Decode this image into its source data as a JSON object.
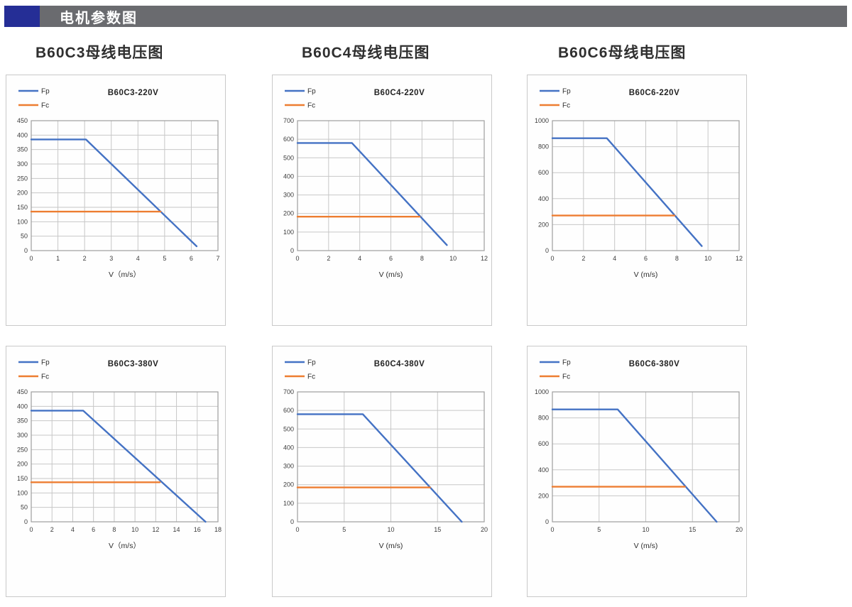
{
  "page": {
    "header": {
      "title": "电机参数图"
    },
    "column_titles": [
      "B60C3母线电压图",
      "B60C4母线电压图",
      "B60C6母线电压图"
    ]
  },
  "colors": {
    "fp": "#4472C4",
    "fc": "#ED7D31",
    "grid": "#c7c7c7",
    "axis_line": "#9e9e9e",
    "header_accent": "#252e96",
    "header_strip": "#6a6b6f"
  },
  "chart_data": [
    {
      "type": "line",
      "title": "B60C3-220V",
      "xlabel": "V（m/s）",
      "xlim": [
        0,
        7
      ],
      "ylim": [
        0,
        450
      ],
      "xticks": [
        0,
        1,
        2,
        3,
        4,
        5,
        6,
        7
      ],
      "yticks": [
        0,
        50,
        100,
        150,
        200,
        250,
        300,
        350,
        400,
        450
      ],
      "legend_position": "top-left",
      "grid": true,
      "series": [
        {
          "name": "Fp",
          "color_key": "fp",
          "points": [
            [
              0,
              385
            ],
            [
              2.05,
              385
            ],
            [
              6.2,
              15
            ]
          ]
        },
        {
          "name": "Fc",
          "color_key": "fc",
          "points": [
            [
              0,
              135
            ],
            [
              4.85,
              135
            ]
          ]
        }
      ]
    },
    {
      "type": "line",
      "title": "B60C4-220V",
      "xlabel": "V (m/s)",
      "xlim": [
        0,
        12
      ],
      "ylim": [
        0,
        700
      ],
      "xticks": [
        0,
        2,
        4,
        6,
        8,
        10,
        12
      ],
      "yticks": [
        0,
        100,
        200,
        300,
        400,
        500,
        600,
        700
      ],
      "legend_position": "top-left",
      "grid": true,
      "series": [
        {
          "name": "Fp",
          "color_key": "fp",
          "points": [
            [
              0,
              580
            ],
            [
              3.5,
              580
            ],
            [
              9.6,
              30
            ]
          ]
        },
        {
          "name": "Fc",
          "color_key": "fc",
          "points": [
            [
              0,
              183
            ],
            [
              7.85,
              183
            ]
          ]
        }
      ]
    },
    {
      "type": "line",
      "title": "B60C6-220V",
      "xlabel": "V (m/s)",
      "xlim": [
        0,
        12
      ],
      "ylim": [
        0,
        1000
      ],
      "xticks": [
        0,
        2,
        4,
        6,
        8,
        10,
        12
      ],
      "yticks": [
        0,
        200,
        400,
        600,
        800,
        1000
      ],
      "legend_position": "top-left",
      "grid": true,
      "series": [
        {
          "name": "Fp",
          "color_key": "fp",
          "points": [
            [
              0,
              865
            ],
            [
              3.5,
              865
            ],
            [
              9.6,
              35
            ]
          ]
        },
        {
          "name": "Fc",
          "color_key": "fc",
          "points": [
            [
              0,
              270
            ],
            [
              7.85,
              270
            ]
          ]
        }
      ]
    },
    {
      "type": "line",
      "title": "B60C3-380V",
      "xlabel": "V（m/s）",
      "xlim": [
        0,
        18
      ],
      "ylim": [
        0,
        450
      ],
      "xticks": [
        0,
        2,
        4,
        6,
        8,
        10,
        12,
        14,
        16,
        18
      ],
      "yticks": [
        0,
        50,
        100,
        150,
        200,
        250,
        300,
        350,
        400,
        450
      ],
      "legend_position": "top-left",
      "grid": true,
      "series": [
        {
          "name": "Fp",
          "color_key": "fp",
          "points": [
            [
              0,
              385
            ],
            [
              5,
              385
            ],
            [
              16.8,
              0
            ]
          ]
        },
        {
          "name": "Fc",
          "color_key": "fc",
          "points": [
            [
              0,
              137
            ],
            [
              12.4,
              137
            ]
          ]
        }
      ]
    },
    {
      "type": "line",
      "title": "B60C4-380V",
      "xlabel": "V (m/s)",
      "xlim": [
        0,
        20
      ],
      "ylim": [
        0,
        700
      ],
      "xticks": [
        0,
        5,
        10,
        15,
        20
      ],
      "yticks": [
        0,
        100,
        200,
        300,
        400,
        500,
        600,
        700
      ],
      "legend_position": "top-left",
      "grid": true,
      "series": [
        {
          "name": "Fp",
          "color_key": "fp",
          "points": [
            [
              0,
              580
            ],
            [
              7,
              580
            ],
            [
              17.6,
              0
            ]
          ]
        },
        {
          "name": "Fc",
          "color_key": "fc",
          "points": [
            [
              0,
              185
            ],
            [
              14.2,
              185
            ]
          ]
        }
      ]
    },
    {
      "type": "line",
      "title": "B60C6-380V",
      "xlabel": "V (m/s)",
      "xlim": [
        0,
        20
      ],
      "ylim": [
        0,
        1000
      ],
      "xticks": [
        0,
        5,
        10,
        15,
        20
      ],
      "yticks": [
        0,
        200,
        400,
        600,
        800,
        1000
      ],
      "legend_position": "top-left",
      "grid": true,
      "series": [
        {
          "name": "Fp",
          "color_key": "fp",
          "points": [
            [
              0,
              865
            ],
            [
              7,
              865
            ],
            [
              17.6,
              0
            ]
          ]
        },
        {
          "name": "Fc",
          "color_key": "fc",
          "points": [
            [
              0,
              270
            ],
            [
              14.2,
              270
            ]
          ]
        }
      ]
    }
  ]
}
